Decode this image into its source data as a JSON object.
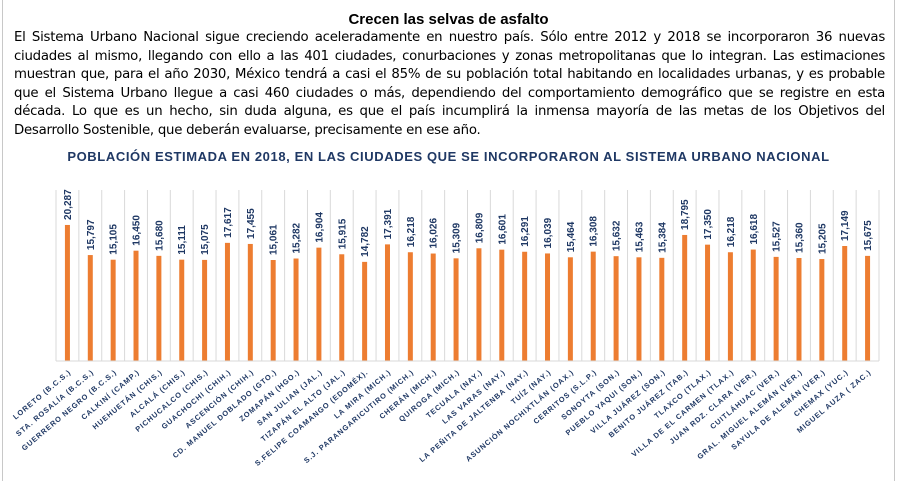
{
  "article": {
    "title": "Crecen las selvas de asfalto",
    "body": "El Sistema Urbano Nacional sigue creciendo aceleradamente en nuestro país. Sólo entre 2012 y 2018 se incorporaron 36 nuevas ciudades al mismo, llegando con ello a las 401 ciudades, conurbaciones y zonas metropolitanas que lo integran. Las estimaciones muestran que, para el año 2030, México tendrá a casi el 85% de su población total habitando en localidades urbanas, y es probable que el Sistema Urbano llegue a casi 460 ciudades o más, dependiendo del comportamiento demográfico que se registre en esta década. Lo que es un hecho, sin duda alguna, es que el país incumplirá la inmensa mayoría de las metas de los Objetivos del Desarrollo Sostenible, que deberán evaluarse, precisamente en ese año."
  },
  "chart_data": {
    "type": "bar",
    "title": "POBLACIÓN ESTIMADA EN 2018, EN LAS CIUDADES QUE SE INCORPORARON AL SISTEMA URBANO NACIONAL",
    "xlabel": "",
    "ylabel": "",
    "ylim": [
      0,
      25500
    ],
    "grid": "vertical category separators",
    "legend": "none",
    "bar_color": "#ed7d31",
    "label_color": "#1f3864",
    "categories": [
      "LORETO (B.C.S.)",
      "STA. ROSALÍA  (B.C.S.)",
      "GUERRERO NEGRO  (B.C.S.)",
      "CALKINÍ (CAMP.)",
      "HUEHUETÁN (CHIS.)",
      "ALCALÁ (CHIS.)",
      "PICHUCALCO (CHIS.)",
      "GUACHOCHI (CHIH.)",
      "ASCENCIÓN (CHIH.)",
      "CD. MANUEL DOBLADO (GTO.)",
      "ZOMAPÁN (HGO.)",
      "SAN JULIAN (JAL.)",
      "TIZAPÁN EL ALTO (JAL.)",
      "S.FELIPE COAMANGO (EDOMÉX).",
      "LA MIRA (MICH.)",
      "S.J. PARANGARICUTIRO (MICH.)",
      "CHERÁN (MICH.)",
      "QUIROGA (MICH.)",
      "TECUALA (NAY.)",
      "LAS VARAS (NAY.)",
      "LA PEÑITA DE JALTENBA (NAY.)",
      "TUÍZ (NAY.)",
      "ASUNCIÓN NOCHIXTLÁN (OAX.)",
      "CERRITOS (S.L.P.)",
      "SONOYTA (SON.)",
      "PUEBLO YAQUI (SON.)",
      "VILLA JUÁREZ (SON.)",
      "BENITO JUÁREZ (TAB.)",
      "TLAXCO (TLAX.)",
      "VILLA DE EL CARMEN (TLAX.)",
      "JUAN RDZ. CLARA (VER.)",
      "CUITLÁHUAC (VER.)",
      "GRAL. MIGUEL ALEMÁN (VER.)",
      "SAYULA DE ALEMÁN (VER.)",
      "CHEMAX (YUC.)",
      "MIGUEL AUZA ( ZAC.)"
    ],
    "values": [
      20287,
      15797,
      15105,
      16450,
      15680,
      15111,
      15075,
      17617,
      17455,
      15061,
      15282,
      16904,
      15915,
      14782,
      17391,
      16218,
      16026,
      15309,
      16809,
      16601,
      16291,
      16039,
      15464,
      16308,
      15632,
      15463,
      15384,
      18795,
      17350,
      16218,
      16618,
      15527,
      15360,
      15205,
      17149,
      15675
    ],
    "value_labels": [
      "20,287",
      "15,797",
      "15,105",
      "16,450",
      "15,680",
      "15,111",
      "15,075",
      "17,617",
      "17,455",
      "15,061",
      "15,282",
      "16,904",
      "15,915",
      "14,782",
      "17,391",
      "16,218",
      "16,026",
      "15,309",
      "16,809",
      "16,601",
      "16,291",
      "16,039",
      "15,464",
      "16,308",
      "15,632",
      "15,463",
      "15,384",
      "18,795",
      "17,350",
      "16,218",
      "16,618",
      "15,527",
      "15,360",
      "15,205",
      "17,149",
      "15,675"
    ]
  }
}
